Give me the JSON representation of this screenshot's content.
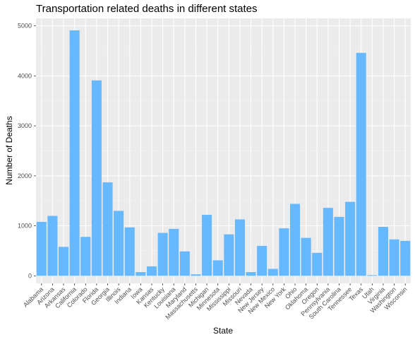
{
  "chart_data": {
    "type": "bar",
    "title": "Transportation related deaths in different states",
    "xlabel": "State",
    "ylabel": "Number of Deaths",
    "categories": [
      "Alabama",
      "Arizona",
      "Arkansas",
      "California",
      "Colorado",
      "Florida",
      "Georgia",
      "Illinois",
      "Indiana",
      "Iowa",
      "Kansas",
      "Kentucky",
      "Louisiana",
      "Maryland",
      "Massachusetts",
      "Michigan",
      "Minnesota",
      "Mississippi",
      "Missouri",
      "Nevada",
      "New Jersey",
      "New Mexico",
      "New York",
      "Ohio",
      "Oklahoma",
      "Oregon",
      "Pennsylvania",
      "South Carolina",
      "Tennessee",
      "Texas",
      "Utah",
      "Virginia",
      "Washington",
      "Wisconsin"
    ],
    "values": [
      1080,
      1200,
      580,
      4910,
      780,
      3910,
      1870,
      1300,
      970,
      75,
      190,
      860,
      940,
      490,
      30,
      1220,
      310,
      830,
      1130,
      75,
      600,
      140,
      950,
      1440,
      760,
      460,
      1360,
      1180,
      1480,
      4460,
      15,
      980,
      730,
      700
    ],
    "yticks": [
      0,
      1000,
      2000,
      3000,
      4000,
      5000
    ],
    "ylim": [
      -150,
      5150
    ],
    "bar_color": "#66b8ff",
    "panel_color": "#ebebeb",
    "grid": true,
    "legend": "none"
  }
}
